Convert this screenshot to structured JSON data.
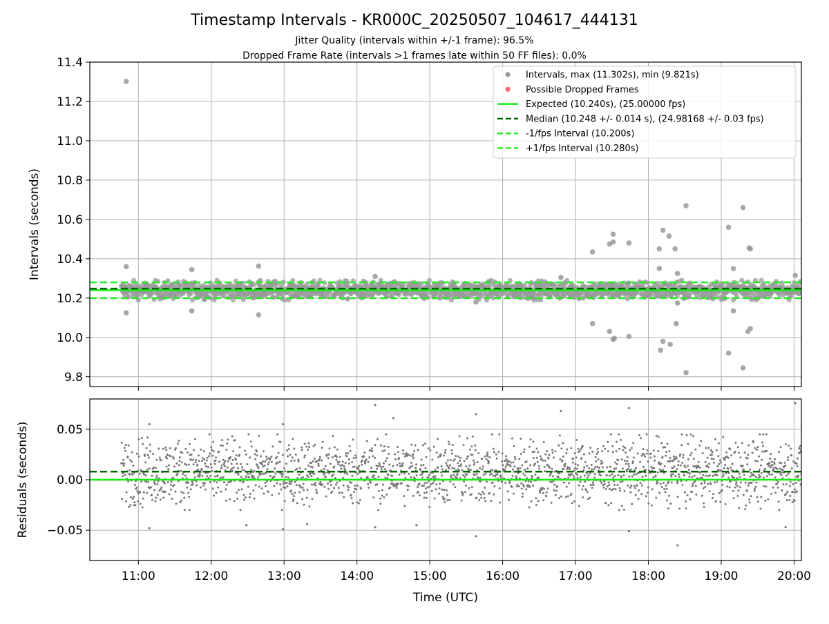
{
  "figure": {
    "title": "Timestamp Intervals - KR000C_20250507_104617_444131",
    "subtitle_1": "Jitter Quality (intervals within +/-1 frame): 96.5%",
    "subtitle_2": "Dropped Frame Rate (intervals >1 frames late within 50 FF files): 0.0%"
  },
  "colors": {
    "scatter": "#999999",
    "dropped": "#ff6666",
    "expected": "#11ee11",
    "median": "#006400",
    "band": "#22ee22",
    "residual": "#777777"
  },
  "chart_data": [
    {
      "type": "scatter",
      "ylabel": "Intervals (seconds)",
      "xlim": [
        "10:20",
        "20:06"
      ],
      "ylim": [
        9.75,
        11.4
      ],
      "yticks": [
        "9.8",
        "10.0",
        "10.2",
        "10.4",
        "10.6",
        "10.8",
        "11.0",
        "11.2",
        "11.4"
      ],
      "grid": true,
      "legend_position": "top-right",
      "legend": [
        "Intervals, max (11.302s), min (9.821s)",
        "Possible Dropped Frames",
        "Expected (10.240s), (25.00000 fps)",
        "Median (10.248 +/- 0.014 s), (24.98168 +/- 0.03 fps)",
        "-1/fps Interval (10.200s)",
        "+1/fps Interval (10.280s)"
      ],
      "reference_lines": {
        "expected": 10.24,
        "median": 10.248,
        "minus_1_fps": 10.2,
        "plus_1_fps": 10.28
      },
      "series": [
        {
          "name": "Intervals, max (11.302s), min (9.821s)",
          "x_start": "10:46",
          "x_end": "20:06",
          "typical_range": [
            10.2,
            10.28
          ],
          "outliers": [
            {
              "x": "10:50",
              "y": 11.302
            },
            {
              "x": "10:50",
              "y": 10.36
            },
            {
              "x": "10:50",
              "y": 10.125
            },
            {
              "x": "11:44",
              "y": 10.345
            },
            {
              "x": "11:44",
              "y": 10.135
            },
            {
              "x": "12:39",
              "y": 10.363
            },
            {
              "x": "12:39",
              "y": 10.115
            },
            {
              "x": "14:15",
              "y": 10.31
            },
            {
              "x": "15:38",
              "y": 10.18
            },
            {
              "x": "16:48",
              "y": 10.305
            },
            {
              "x": "17:14",
              "y": 10.435
            },
            {
              "x": "17:14",
              "y": 10.07
            },
            {
              "x": "17:28",
              "y": 10.475
            },
            {
              "x": "17:31",
              "y": 10.525
            },
            {
              "x": "17:31",
              "y": 10.485
            },
            {
              "x": "17:28",
              "y": 10.03
            },
            {
              "x": "17:32",
              "y": 9.995
            },
            {
              "x": "17:31",
              "y": 9.99
            },
            {
              "x": "17:44",
              "y": 10.48
            },
            {
              "x": "17:44",
              "y": 10.005
            },
            {
              "x": "18:09",
              "y": 10.45
            },
            {
              "x": "18:12",
              "y": 10.545
            },
            {
              "x": "18:17",
              "y": 10.515
            },
            {
              "x": "18:09",
              "y": 10.35
            },
            {
              "x": "18:22",
              "y": 10.45
            },
            {
              "x": "18:24",
              "y": 10.325
            },
            {
              "x": "18:24",
              "y": 10.175
            },
            {
              "x": "18:23",
              "y": 10.07
            },
            {
              "x": "18:12",
              "y": 9.98
            },
            {
              "x": "18:18",
              "y": 9.965
            },
            {
              "x": "18:10",
              "y": 9.935
            },
            {
              "x": "18:31",
              "y": 10.67
            },
            {
              "x": "18:31",
              "y": 9.821
            },
            {
              "x": "19:06",
              "y": 10.56
            },
            {
              "x": "19:10",
              "y": 10.35
            },
            {
              "x": "19:10",
              "y": 10.135
            },
            {
              "x": "19:06",
              "y": 9.92
            },
            {
              "x": "19:18",
              "y": 10.66
            },
            {
              "x": "19:23",
              "y": 10.455
            },
            {
              "x": "19:24",
              "y": 10.45
            },
            {
              "x": "19:24",
              "y": 10.045
            },
            {
              "x": "19:22",
              "y": 10.03
            },
            {
              "x": "19:18",
              "y": 9.845
            },
            {
              "x": "20:01",
              "y": 10.315
            }
          ]
        }
      ]
    },
    {
      "type": "scatter",
      "xlabel": "Time (UTC)",
      "ylabel": "Residuals (seconds)",
      "xlim": [
        "10:20",
        "20:06"
      ],
      "ylim": [
        -0.08,
        0.08
      ],
      "xticks": [
        "11:00",
        "12:00",
        "13:00",
        "14:00",
        "15:00",
        "16:00",
        "17:00",
        "18:00",
        "19:00",
        "20:00"
      ],
      "yticks": [
        "−0.05",
        "0.00",
        "0.05"
      ],
      "grid": true,
      "reference_lines": {
        "zero": 0.0,
        "median_offset": 0.008
      },
      "series": [
        {
          "name": "Residuals",
          "x_start": "10:46",
          "x_end": "20:06",
          "typical_range": [
            -0.03,
            0.045
          ],
          "outliers": [
            {
              "x": "11:09",
              "y": 0.055
            },
            {
              "x": "11:09",
              "y": -0.048
            },
            {
              "x": "12:29",
              "y": -0.045
            },
            {
              "x": "12:59",
              "y": 0.055
            },
            {
              "x": "12:59",
              "y": -0.049
            },
            {
              "x": "13:19",
              "y": -0.044
            },
            {
              "x": "14:15",
              "y": 0.074
            },
            {
              "x": "14:15",
              "y": -0.047
            },
            {
              "x": "14:30",
              "y": 0.061
            },
            {
              "x": "14:49",
              "y": -0.045
            },
            {
              "x": "15:38",
              "y": 0.065
            },
            {
              "x": "15:38",
              "y": -0.056
            },
            {
              "x": "16:48",
              "y": 0.068
            },
            {
              "x": "17:44",
              "y": 0.071
            },
            {
              "x": "17:44",
              "y": -0.051
            },
            {
              "x": "18:24",
              "y": -0.065
            },
            {
              "x": "19:53",
              "y": -0.047
            },
            {
              "x": "20:01",
              "y": 0.076
            }
          ]
        }
      ]
    }
  ]
}
